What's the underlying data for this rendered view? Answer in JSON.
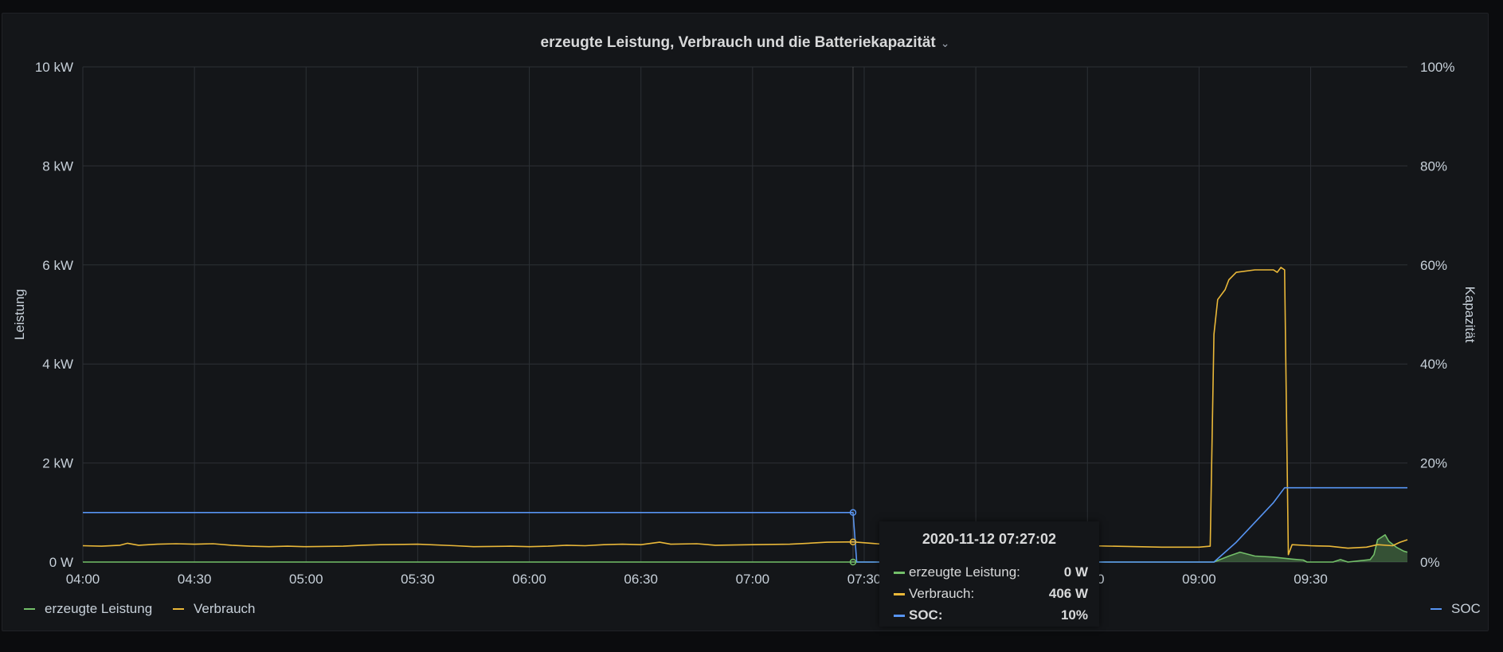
{
  "panel": {
    "title": "erzeugte Leistung, Verbrauch und die Batteriekapazität",
    "title_chevron": "⌄"
  },
  "chart_data": {
    "type": "line",
    "title": "erzeugte Leistung, Verbrauch und die Batteriekapazität",
    "ylabel": "Leistung",
    "y2label": "Kapazität",
    "x_ticks": [
      "04:00",
      "04:30",
      "05:00",
      "05:30",
      "06:00",
      "06:30",
      "07:00",
      "07:30",
      "08:00",
      "08:30",
      "09:00",
      "09:30"
    ],
    "y_ticks": [
      "0 W",
      "2 kW",
      "4 kW",
      "6 kW",
      "8 kW",
      "10 kW"
    ],
    "y2_ticks": [
      "0%",
      "20%",
      "40%",
      "60%",
      "80%",
      "100%"
    ],
    "xlim": [
      "04:00",
      "09:56"
    ],
    "ylim": [
      0,
      10
    ],
    "y_unit": "kW",
    "y2lim": [
      0,
      100
    ],
    "y2_unit": "%",
    "grid": true,
    "series": [
      {
        "name": "erzeugte Leistung",
        "axis": "left",
        "color": "#73bf69",
        "fill": true,
        "points": [
          [
            "04:00",
            0
          ],
          [
            "07:27",
            0
          ],
          [
            "09:04",
            0
          ],
          [
            "09:08",
            0.12
          ],
          [
            "09:11",
            0.2
          ],
          [
            "09:15",
            0.12
          ],
          [
            "09:20",
            0.1
          ],
          [
            "09:25",
            0.06
          ],
          [
            "09:28",
            0.04
          ],
          [
            "09:29",
            0.0
          ],
          [
            "09:36",
            0.0
          ],
          [
            "09:38",
            0.05
          ],
          [
            "09:40",
            0.0
          ],
          [
            "09:46",
            0.05
          ],
          [
            "09:47",
            0.15
          ],
          [
            "09:48",
            0.45
          ],
          [
            "09:50",
            0.55
          ],
          [
            "09:51",
            0.42
          ],
          [
            "09:53",
            0.3
          ],
          [
            "09:55",
            0.22
          ],
          [
            "09:56",
            0.2
          ]
        ]
      },
      {
        "name": "Verbrauch",
        "axis": "left",
        "color": "#eab839",
        "fill": false,
        "points": [
          [
            "04:00",
            0.33
          ],
          [
            "04:05",
            0.32
          ],
          [
            "04:10",
            0.34
          ],
          [
            "04:12",
            0.38
          ],
          [
            "04:15",
            0.34
          ],
          [
            "04:20",
            0.36
          ],
          [
            "04:25",
            0.37
          ],
          [
            "04:30",
            0.36
          ],
          [
            "04:35",
            0.37
          ],
          [
            "04:40",
            0.34
          ],
          [
            "04:45",
            0.32
          ],
          [
            "04:50",
            0.31
          ],
          [
            "04:55",
            0.32
          ],
          [
            "05:00",
            0.31
          ],
          [
            "05:10",
            0.32
          ],
          [
            "05:15",
            0.34
          ],
          [
            "05:20",
            0.35
          ],
          [
            "05:30",
            0.36
          ],
          [
            "05:40",
            0.33
          ],
          [
            "05:45",
            0.31
          ],
          [
            "05:55",
            0.32
          ],
          [
            "06:00",
            0.31
          ],
          [
            "06:05",
            0.32
          ],
          [
            "06:10",
            0.34
          ],
          [
            "06:15",
            0.33
          ],
          [
            "06:20",
            0.35
          ],
          [
            "06:25",
            0.36
          ],
          [
            "06:30",
            0.35
          ],
          [
            "06:35",
            0.4
          ],
          [
            "06:38",
            0.36
          ],
          [
            "06:45",
            0.37
          ],
          [
            "06:50",
            0.34
          ],
          [
            "07:00",
            0.35
          ],
          [
            "07:10",
            0.36
          ],
          [
            "07:15",
            0.38
          ],
          [
            "07:20",
            0.4
          ],
          [
            "07:27",
            0.406
          ],
          [
            "07:35",
            0.36
          ],
          [
            "08:00",
            0.34
          ],
          [
            "08:30",
            0.33
          ],
          [
            "08:50",
            0.3
          ],
          [
            "09:00",
            0.3
          ],
          [
            "09:03",
            0.32
          ],
          [
            "09:04",
            4.6
          ],
          [
            "09:05",
            5.3
          ],
          [
            "09:07",
            5.5
          ],
          [
            "09:08",
            5.7
          ],
          [
            "09:10",
            5.85
          ],
          [
            "09:15",
            5.9
          ],
          [
            "09:20",
            5.9
          ],
          [
            "09:21",
            5.85
          ],
          [
            "09:22",
            5.95
          ],
          [
            "09:23",
            5.9
          ],
          [
            "09:24",
            0.15
          ],
          [
            "09:25",
            0.35
          ],
          [
            "09:30",
            0.33
          ],
          [
            "09:35",
            0.32
          ],
          [
            "09:40",
            0.28
          ],
          [
            "09:45",
            0.3
          ],
          [
            "09:48",
            0.35
          ],
          [
            "09:52",
            0.33
          ],
          [
            "09:54",
            0.4
          ],
          [
            "09:56",
            0.45
          ]
        ]
      },
      {
        "name": "SOC",
        "axis": "right",
        "color": "#5794f2",
        "fill": false,
        "points": [
          [
            "04:00",
            10
          ],
          [
            "07:27",
            10
          ],
          [
            "07:28",
            0
          ],
          [
            "09:04",
            0
          ],
          [
            "09:10",
            4
          ],
          [
            "09:15",
            8
          ],
          [
            "09:20",
            12
          ],
          [
            "09:23",
            15
          ],
          [
            "09:56",
            15
          ]
        ]
      }
    ],
    "hover": {
      "time": "07:27"
    }
  },
  "tooltip": {
    "time": "2020-11-12 07:27:02",
    "rows": [
      {
        "label": "erzeugte Leistung:",
        "value": "0 W",
        "color": "#73bf69"
      },
      {
        "label": "Verbrauch:",
        "value": "406 W",
        "color": "#eab839"
      },
      {
        "label": "SOC:",
        "value": "10%",
        "color": "#5794f2"
      }
    ]
  },
  "legend": {
    "left": [
      {
        "label": "erzeugte Leistung",
        "color": "#73bf69"
      },
      {
        "label": "Verbrauch",
        "color": "#eab839"
      }
    ],
    "right": [
      {
        "label": "SOC",
        "color": "#5794f2"
      }
    ]
  }
}
